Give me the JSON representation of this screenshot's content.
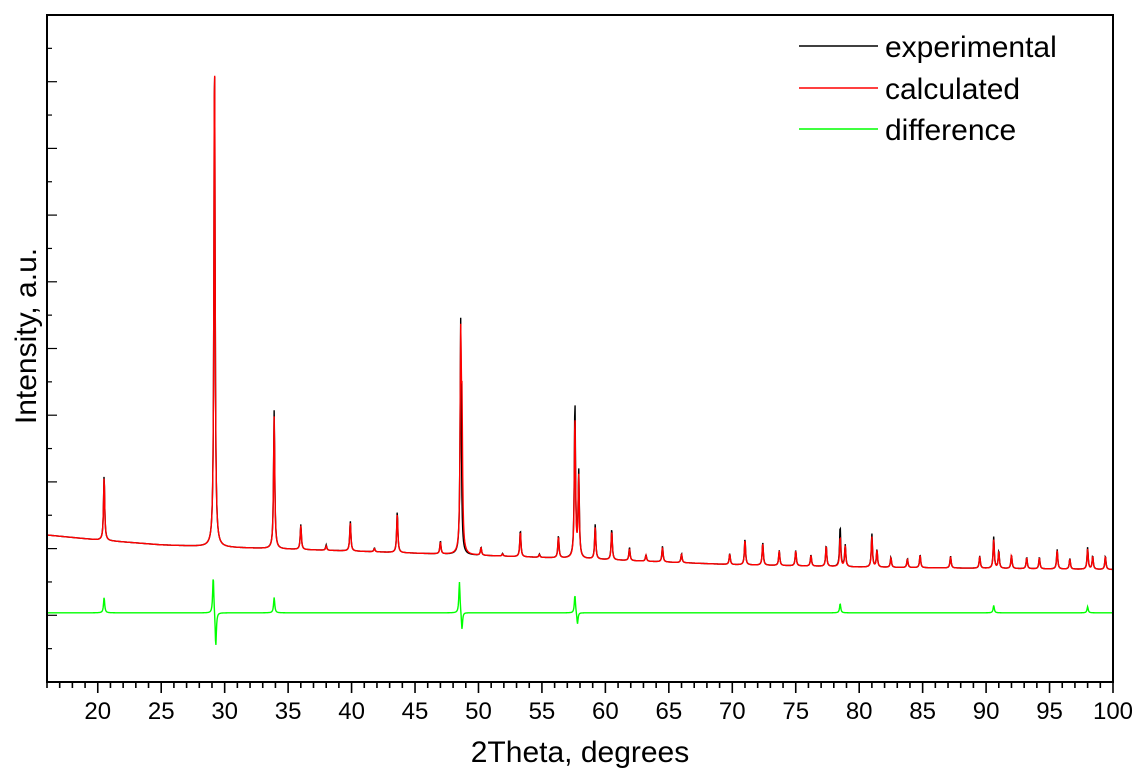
{
  "chart_data": {
    "type": "line",
    "title": "",
    "xlabel": "2Theta, degrees",
    "ylabel": "Intensity, a.u.",
    "xlim": [
      16,
      100
    ],
    "ylim": [
      -0.6,
      10.2
    ],
    "x_ticks": [
      20,
      25,
      30,
      35,
      40,
      45,
      50,
      55,
      60,
      65,
      70,
      75,
      80,
      85,
      90,
      95,
      100
    ],
    "x_minor_tick_step": 1,
    "y_tick_labels_shown": false,
    "grid": false,
    "legend_position": "top-right",
    "series": [
      {
        "name": "experimental",
        "color": "#000000",
        "baseline": [
          [
            16,
            1.78
          ],
          [
            20,
            1.7
          ],
          [
            25,
            1.62
          ],
          [
            30,
            1.58
          ],
          [
            40,
            1.52
          ],
          [
            50,
            1.45
          ],
          [
            60,
            1.38
          ],
          [
            70,
            1.3
          ],
          [
            80,
            1.26
          ],
          [
            90,
            1.24
          ],
          [
            100,
            1.22
          ]
        ],
        "peaks": [
          [
            20.5,
            2.75
          ],
          [
            29.2,
            9.68
          ],
          [
            33.9,
            3.8
          ],
          [
            36.0,
            1.95
          ],
          [
            38.0,
            1.62
          ],
          [
            39.9,
            2.01
          ],
          [
            41.8,
            1.57
          ],
          [
            43.6,
            2.16
          ],
          [
            47.0,
            1.68
          ],
          [
            48.6,
            5.3
          ],
          [
            50.2,
            1.58
          ],
          [
            51.9,
            1.48
          ],
          [
            53.3,
            1.86
          ],
          [
            54.8,
            1.47
          ],
          [
            56.3,
            1.77
          ],
          [
            57.6,
            3.95
          ],
          [
            57.9,
            2.78
          ],
          [
            59.2,
            1.95
          ],
          [
            60.5,
            1.88
          ],
          [
            61.9,
            1.58
          ],
          [
            63.2,
            1.46
          ],
          [
            64.5,
            1.6
          ],
          [
            66.0,
            1.48
          ],
          [
            69.8,
            1.48
          ],
          [
            71.0,
            1.72
          ],
          [
            72.4,
            1.66
          ],
          [
            73.7,
            1.53
          ],
          [
            75.0,
            1.53
          ],
          [
            76.2,
            1.46
          ],
          [
            77.4,
            1.61
          ],
          [
            78.5,
            1.92
          ],
          [
            78.9,
            1.62
          ],
          [
            81.0,
            1.8
          ],
          [
            81.4,
            1.54
          ],
          [
            82.5,
            1.42
          ],
          [
            83.8,
            1.4
          ],
          [
            84.8,
            1.46
          ],
          [
            87.2,
            1.44
          ],
          [
            89.5,
            1.44
          ],
          [
            90.6,
            1.75
          ],
          [
            91.0,
            1.52
          ],
          [
            92.0,
            1.46
          ],
          [
            93.2,
            1.42
          ],
          [
            94.2,
            1.42
          ],
          [
            95.6,
            1.55
          ],
          [
            96.6,
            1.4
          ],
          [
            98.0,
            1.58
          ],
          [
            98.4,
            1.44
          ],
          [
            99.4,
            1.44
          ]
        ]
      },
      {
        "name": "calculated",
        "color": "#ff0000",
        "baseline": [
          [
            16,
            1.78
          ],
          [
            20,
            1.7
          ],
          [
            25,
            1.62
          ],
          [
            30,
            1.58
          ],
          [
            40,
            1.52
          ],
          [
            50,
            1.45
          ],
          [
            60,
            1.38
          ],
          [
            70,
            1.3
          ],
          [
            80,
            1.26
          ],
          [
            90,
            1.24
          ],
          [
            100,
            1.22
          ]
        ],
        "peaks": [
          [
            20.5,
            2.72
          ],
          [
            29.2,
            9.7
          ],
          [
            33.9,
            3.7
          ],
          [
            36.0,
            1.93
          ],
          [
            38.0,
            1.6
          ],
          [
            39.9,
            1.98
          ],
          [
            41.8,
            1.56
          ],
          [
            43.6,
            2.12
          ],
          [
            47.0,
            1.66
          ],
          [
            48.6,
            4.75
          ],
          [
            48.7,
            3.45
          ],
          [
            50.2,
            1.57
          ],
          [
            51.9,
            1.47
          ],
          [
            53.3,
            1.83
          ],
          [
            54.8,
            1.46
          ],
          [
            56.3,
            1.75
          ],
          [
            57.6,
            3.7
          ],
          [
            57.9,
            2.7
          ],
          [
            59.2,
            1.9
          ],
          [
            60.5,
            1.84
          ],
          [
            61.9,
            1.56
          ],
          [
            63.2,
            1.45
          ],
          [
            64.5,
            1.58
          ],
          [
            66.0,
            1.47
          ],
          [
            69.8,
            1.47
          ],
          [
            71.0,
            1.7
          ],
          [
            72.4,
            1.64
          ],
          [
            73.7,
            1.52
          ],
          [
            75.0,
            1.52
          ],
          [
            76.2,
            1.45
          ],
          [
            77.4,
            1.6
          ],
          [
            78.5,
            1.75
          ],
          [
            78.9,
            1.6
          ],
          [
            81.0,
            1.75
          ],
          [
            81.4,
            1.53
          ],
          [
            82.5,
            1.41
          ],
          [
            83.8,
            1.39
          ],
          [
            84.8,
            1.45
          ],
          [
            87.2,
            1.43
          ],
          [
            89.5,
            1.43
          ],
          [
            90.6,
            1.7
          ],
          [
            91.0,
            1.5
          ],
          [
            92.0,
            1.45
          ],
          [
            93.2,
            1.41
          ],
          [
            94.2,
            1.41
          ],
          [
            95.6,
            1.53
          ],
          [
            96.6,
            1.39
          ],
          [
            98.0,
            1.55
          ],
          [
            98.4,
            1.43
          ],
          [
            99.4,
            1.43
          ]
        ]
      },
      {
        "name": "difference",
        "color": "#00ff00",
        "baseline": [
          [
            16,
            0.52
          ],
          [
            100,
            0.52
          ]
        ],
        "features": [
          [
            20.5,
            0.25
          ],
          [
            29.1,
            0.62
          ],
          [
            29.3,
            -0.58
          ],
          [
            33.9,
            0.25
          ],
          [
            48.5,
            0.52
          ],
          [
            48.7,
            -0.3
          ],
          [
            57.6,
            0.3
          ],
          [
            57.8,
            -0.2
          ],
          [
            78.5,
            0.15
          ],
          [
            90.6,
            0.12
          ],
          [
            98.0,
            0.1
          ]
        ]
      }
    ]
  }
}
